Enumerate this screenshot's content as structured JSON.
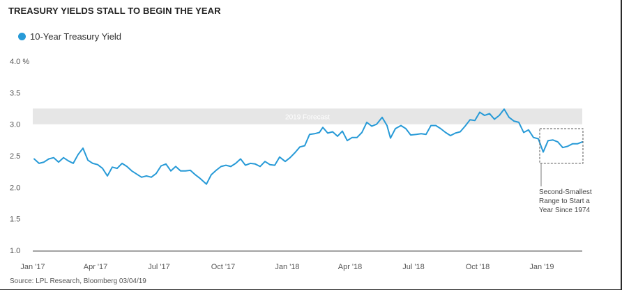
{
  "title": "TREASURY YIELDS STALL TO BEGIN THE YEAR",
  "source": "Source: LPL Research, Bloomberg  03/04/19",
  "colors": {
    "series": "#279ad7",
    "band": "#e6e6e6",
    "axis": "#444444",
    "text": "#333333"
  },
  "chart_data": {
    "type": "line",
    "title": "TREASURY YIELDS STALL TO BEGIN THE YEAR",
    "xlabel": "",
    "ylabel": "",
    "y_tick_labels": [
      "1.0",
      "1.5",
      "2.0",
      "2.5",
      "3.0",
      "3.5",
      "4.0 %"
    ],
    "y_ticks": [
      1.0,
      1.5,
      2.0,
      2.5,
      3.0,
      3.5,
      4.0
    ],
    "ylim": [
      1.0,
      4.0
    ],
    "x_tick_labels": [
      "Jan '17",
      "Apr '17",
      "Jul '17",
      "Oct '17",
      "Jan '18",
      "Apr '18",
      "Jul '18",
      "Oct '18",
      "Jan '19"
    ],
    "x_ticks": [
      "2017-01-01",
      "2017-04-01",
      "2017-07-01",
      "2017-10-01",
      "2018-01-01",
      "2018-04-01",
      "2018-07-01",
      "2018-10-01",
      "2019-01-01"
    ],
    "xlim": [
      "2017-01-01",
      "2019-02-28"
    ],
    "grid": false,
    "legend": "top-left",
    "series": [
      {
        "name": "10-Year Treasury Yield",
        "color": "#279ad7",
        "points": [
          [
            "2017-01-03",
            2.45
          ],
          [
            "2017-01-10",
            2.38
          ],
          [
            "2017-01-17",
            2.4
          ],
          [
            "2017-01-24",
            2.45
          ],
          [
            "2017-01-31",
            2.47
          ],
          [
            "2017-02-07",
            2.4
          ],
          [
            "2017-02-14",
            2.47
          ],
          [
            "2017-02-21",
            2.42
          ],
          [
            "2017-02-28",
            2.38
          ],
          [
            "2017-03-07",
            2.52
          ],
          [
            "2017-03-14",
            2.62
          ],
          [
            "2017-03-21",
            2.43
          ],
          [
            "2017-03-28",
            2.38
          ],
          [
            "2017-04-04",
            2.36
          ],
          [
            "2017-04-11",
            2.3
          ],
          [
            "2017-04-18",
            2.18
          ],
          [
            "2017-04-25",
            2.32
          ],
          [
            "2017-05-02",
            2.3
          ],
          [
            "2017-05-09",
            2.38
          ],
          [
            "2017-05-16",
            2.33
          ],
          [
            "2017-05-23",
            2.26
          ],
          [
            "2017-05-30",
            2.21
          ],
          [
            "2017-06-06",
            2.16
          ],
          [
            "2017-06-13",
            2.18
          ],
          [
            "2017-06-20",
            2.16
          ],
          [
            "2017-06-27",
            2.22
          ],
          [
            "2017-07-04",
            2.34
          ],
          [
            "2017-07-11",
            2.37
          ],
          [
            "2017-07-18",
            2.26
          ],
          [
            "2017-07-25",
            2.33
          ],
          [
            "2017-08-01",
            2.26
          ],
          [
            "2017-08-08",
            2.26
          ],
          [
            "2017-08-15",
            2.27
          ],
          [
            "2017-08-22",
            2.2
          ],
          [
            "2017-08-29",
            2.14
          ],
          [
            "2017-09-07",
            2.05
          ],
          [
            "2017-09-14",
            2.2
          ],
          [
            "2017-09-21",
            2.27
          ],
          [
            "2017-09-28",
            2.33
          ],
          [
            "2017-10-05",
            2.35
          ],
          [
            "2017-10-12",
            2.33
          ],
          [
            "2017-10-19",
            2.38
          ],
          [
            "2017-10-26",
            2.45
          ],
          [
            "2017-11-02",
            2.35
          ],
          [
            "2017-11-09",
            2.38
          ],
          [
            "2017-11-16",
            2.37
          ],
          [
            "2017-11-23",
            2.33
          ],
          [
            "2017-11-30",
            2.41
          ],
          [
            "2017-12-07",
            2.36
          ],
          [
            "2017-12-14",
            2.35
          ],
          [
            "2017-12-21",
            2.48
          ],
          [
            "2017-12-29",
            2.41
          ],
          [
            "2018-01-05",
            2.47
          ],
          [
            "2018-01-12",
            2.55
          ],
          [
            "2018-01-19",
            2.64
          ],
          [
            "2018-01-26",
            2.66
          ],
          [
            "2018-02-02",
            2.84
          ],
          [
            "2018-02-09",
            2.85
          ],
          [
            "2018-02-16",
            2.87
          ],
          [
            "2018-02-21",
            2.95
          ],
          [
            "2018-02-28",
            2.86
          ],
          [
            "2018-03-07",
            2.88
          ],
          [
            "2018-03-14",
            2.81
          ],
          [
            "2018-03-21",
            2.89
          ],
          [
            "2018-03-28",
            2.74
          ],
          [
            "2018-04-04",
            2.79
          ],
          [
            "2018-04-11",
            2.79
          ],
          [
            "2018-04-18",
            2.87
          ],
          [
            "2018-04-25",
            3.03
          ],
          [
            "2018-05-02",
            2.97
          ],
          [
            "2018-05-09",
            3.0
          ],
          [
            "2018-05-17",
            3.11
          ],
          [
            "2018-05-24",
            2.98
          ],
          [
            "2018-05-29",
            2.78
          ],
          [
            "2018-06-05",
            2.93
          ],
          [
            "2018-06-13",
            2.98
          ],
          [
            "2018-06-20",
            2.93
          ],
          [
            "2018-06-27",
            2.83
          ],
          [
            "2018-07-05",
            2.84
          ],
          [
            "2018-07-12",
            2.85
          ],
          [
            "2018-07-19",
            2.84
          ],
          [
            "2018-07-26",
            2.98
          ],
          [
            "2018-08-02",
            2.98
          ],
          [
            "2018-08-09",
            2.93
          ],
          [
            "2018-08-16",
            2.87
          ],
          [
            "2018-08-23",
            2.82
          ],
          [
            "2018-08-30",
            2.86
          ],
          [
            "2018-09-06",
            2.88
          ],
          [
            "2018-09-13",
            2.97
          ],
          [
            "2018-09-20",
            3.07
          ],
          [
            "2018-09-27",
            3.06
          ],
          [
            "2018-10-04",
            3.19
          ],
          [
            "2018-10-11",
            3.14
          ],
          [
            "2018-10-18",
            3.17
          ],
          [
            "2018-10-25",
            3.08
          ],
          [
            "2018-11-01",
            3.14
          ],
          [
            "2018-11-08",
            3.24
          ],
          [
            "2018-11-15",
            3.11
          ],
          [
            "2018-11-22",
            3.05
          ],
          [
            "2018-11-29",
            3.03
          ],
          [
            "2018-12-06",
            2.87
          ],
          [
            "2018-12-13",
            2.91
          ],
          [
            "2018-12-20",
            2.79
          ],
          [
            "2018-12-27",
            2.77
          ],
          [
            "2019-01-03",
            2.56
          ],
          [
            "2019-01-10",
            2.74
          ],
          [
            "2019-01-17",
            2.75
          ],
          [
            "2019-01-24",
            2.72
          ],
          [
            "2019-01-31",
            2.63
          ],
          [
            "2019-02-07",
            2.65
          ],
          [
            "2019-02-14",
            2.69
          ],
          [
            "2019-02-21",
            2.69
          ],
          [
            "2019-02-28",
            2.72
          ]
        ]
      }
    ],
    "annotations": {
      "band": {
        "label": "2019 Forecast",
        "y_range": [
          3.0,
          3.25
        ],
        "x_range": [
          "2017-01-01",
          "2019-02-28"
        ]
      },
      "box": {
        "x_range": [
          "2019-01-01",
          "2019-02-28"
        ],
        "y_range": [
          2.38,
          2.93
        ],
        "label": [
          "Second-Smallest",
          "Range to Start a",
          "Year Since 1974"
        ]
      }
    }
  }
}
